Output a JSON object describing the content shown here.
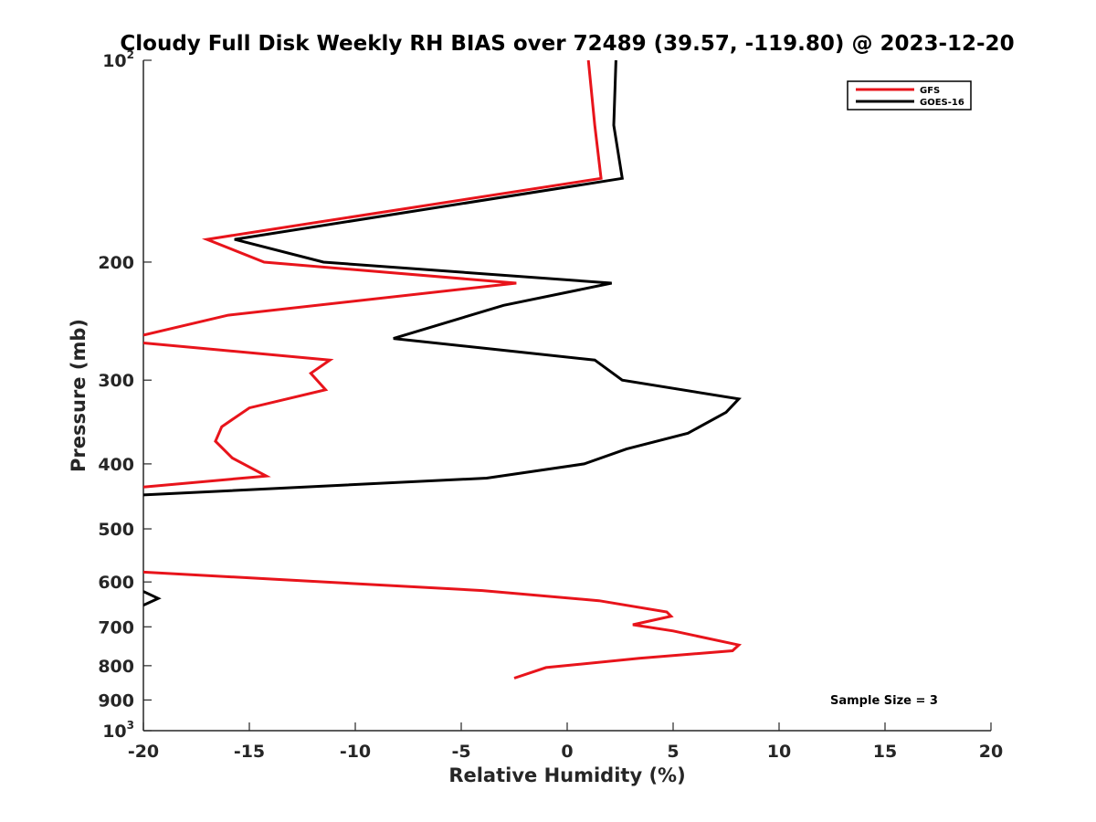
{
  "chart_data": {
    "type": "line",
    "title": "Cloudy Full Disk Weekly RH BIAS over 72489 (39.57, -119.80) @ 2023-12-20",
    "xlabel": "Relative Humidity (%)",
    "ylabel": "Pressure (mb)",
    "xlim": [
      -20,
      20
    ],
    "ylim": [
      100,
      1000
    ],
    "yscale": "log",
    "y_reversed": true,
    "grid": false,
    "legend_position": "top-right",
    "x_ticks": [
      "-20",
      "-15",
      "-10",
      "-5",
      "0",
      "5",
      "10",
      "15",
      "20"
    ],
    "y_ticks": [
      {
        "value": 100,
        "base": "10",
        "exp": "2"
      },
      {
        "value": 200,
        "label": "200"
      },
      {
        "value": 300,
        "label": "300"
      },
      {
        "value": 400,
        "label": "400"
      },
      {
        "value": 500,
        "label": "500"
      },
      {
        "value": 600,
        "label": "600"
      },
      {
        "value": 700,
        "label": "700"
      },
      {
        "value": 800,
        "label": "800"
      },
      {
        "value": 900,
        "label": "900"
      },
      {
        "value": 1000,
        "base": "10",
        "exp": "3"
      }
    ],
    "series": [
      {
        "name": "GFS",
        "color": "#e8141b",
        "segments": [
          [
            [
              1.0,
              100
            ],
            [
              1.3,
              125
            ],
            [
              1.6,
              150
            ],
            [
              -17,
              185
            ],
            [
              -14.3,
              200
            ],
            [
              -2.4,
              215
            ],
            [
              -16,
              240
            ],
            [
              -20,
              257
            ]
          ],
          [
            [
              -20,
              264
            ],
            [
              -11.2,
              280
            ],
            [
              -12.1,
              293
            ],
            [
              -11.4,
              310
            ],
            [
              -15,
              330
            ],
            [
              -16.3,
              352
            ],
            [
              -16.6,
              370
            ],
            [
              -15.8,
              392
            ],
            [
              -14.2,
              417
            ],
            [
              -20,
              433
            ]
          ],
          [
            [
              -20,
              580
            ],
            [
              -4,
              618
            ],
            [
              1.5,
              640
            ],
            [
              4.7,
              665
            ],
            [
              4.9,
              675
            ],
            [
              3.1,
              695
            ],
            [
              5,
              710
            ],
            [
              8.1,
              745
            ],
            [
              7.8,
              760
            ],
            [
              3.4,
              780
            ],
            [
              -1,
              805
            ],
            [
              -2.5,
              835
            ]
          ]
        ]
      },
      {
        "name": "GOES-16",
        "color": "#000000",
        "segments": [
          [
            [
              2.3,
              100
            ],
            [
              2.2,
              125
            ],
            [
              2.6,
              150
            ],
            [
              -15.7,
              185
            ],
            [
              -11.5,
              200
            ],
            [
              2.1,
              215
            ],
            [
              -3,
              232
            ],
            [
              -8.2,
              260
            ],
            [
              1.3,
              280
            ],
            [
              2.6,
              300
            ],
            [
              8.1,
              320
            ],
            [
              7.5,
              335
            ],
            [
              5.7,
              360
            ],
            [
              2.8,
              380
            ],
            [
              0.8,
              400
            ],
            [
              -3.8,
              420
            ],
            [
              -20,
              445
            ]
          ],
          [
            [
              -20,
              620
            ],
            [
              -19.3,
              635
            ],
            [
              -20,
              650
            ]
          ]
        ]
      }
    ],
    "annotation": "Sample Size = 3"
  }
}
